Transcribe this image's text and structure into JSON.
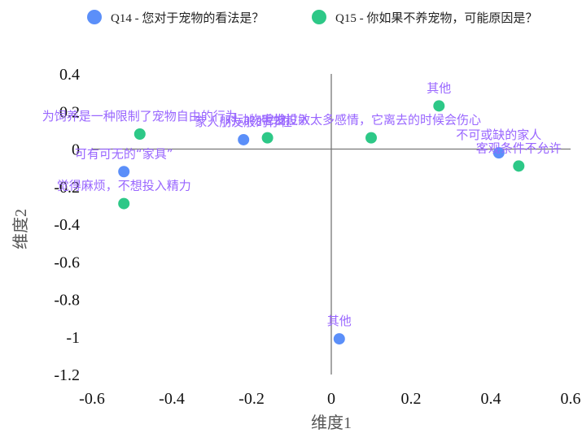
{
  "chart_data": {
    "type": "scatter",
    "title": "",
    "xlabel": "维度1",
    "ylabel": "维度2",
    "xlim": [
      -0.6,
      0.6
    ],
    "ylim": [
      -1.2,
      0.4
    ],
    "xticks": [
      "-0.6",
      "-0.4",
      "-0.2",
      "0",
      "0.2",
      "0.4",
      "0.6"
    ],
    "yticks": [
      "0.4",
      "0.2",
      "0",
      "-0.2",
      "-0.4",
      "-0.6",
      "-0.8",
      "-1",
      "-1.2"
    ],
    "legend_position": "top",
    "series": [
      {
        "name": "Q14 - 您对于宠物的看法是？",
        "color": "#5b8ff9",
        "points": [
          {
            "x": -0.52,
            "y": -0.12,
            "label": "可有可无的“家具”"
          },
          {
            "x": -0.22,
            "y": 0.05,
            "label": "家人朋友般的存在"
          },
          {
            "x": 0.02,
            "y": -1.01,
            "label": "其他"
          },
          {
            "x": 0.42,
            "y": -0.02,
            "label": "不可或缺的家人"
          }
        ]
      },
      {
        "name": "Q15 - 你如果不养宠物，可能原因是？",
        "color": "#2dc887",
        "points": [
          {
            "x": -0.48,
            "y": 0.08,
            "label": "为饲养是一种限制了宠物自由的行为"
          },
          {
            "x": -0.52,
            "y": -0.29,
            "label": "觉得麻烦，不想投入精力"
          },
          {
            "x": -0.16,
            "y": 0.06,
            "label": "对动物毛发过敏"
          },
          {
            "x": 0.1,
            "y": 0.06,
            "label": "害怕投入太多感情，它离去的时候会伤心"
          },
          {
            "x": 0.27,
            "y": 0.23,
            "label": "其他"
          },
          {
            "x": 0.47,
            "y": -0.09,
            "label": "客观条件不允许"
          }
        ]
      }
    ]
  }
}
